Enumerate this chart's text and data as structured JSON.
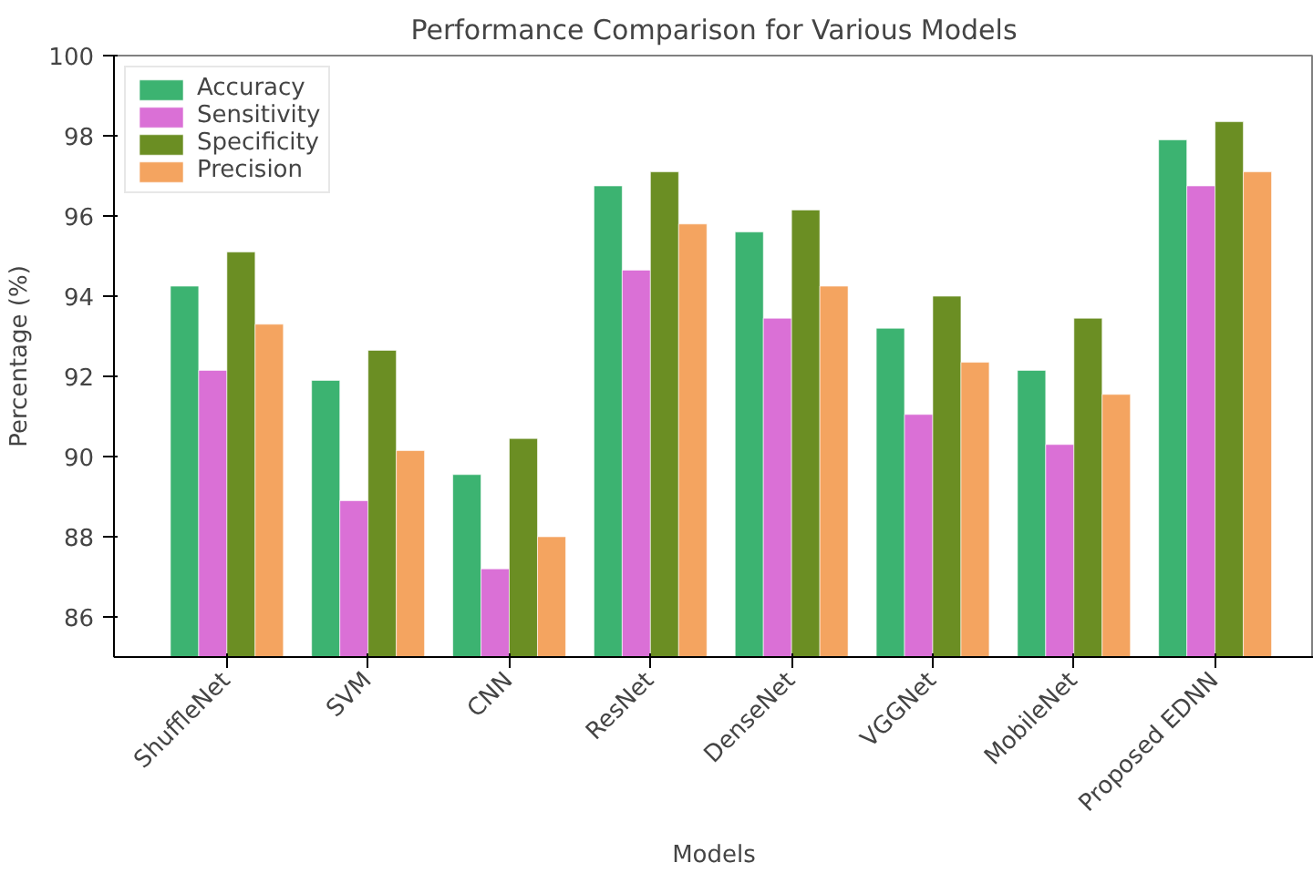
{
  "chart_data": {
    "type": "bar",
    "title": "Performance Comparison for Various Models",
    "xlabel": "Models",
    "ylabel": "Percentage (%)",
    "categories": [
      "ShuffleNet",
      "SVM",
      "CNN",
      "ResNet",
      "DenseNet",
      "VGGNet",
      "MobileNet",
      "Proposed EDNN"
    ],
    "series": [
      {
        "name": "Accuracy",
        "color": "#3cb371",
        "values": [
          94.25,
          91.9,
          89.55,
          96.75,
          95.6,
          93.2,
          92.15,
          97.9
        ]
      },
      {
        "name": "Sensitivity",
        "color": "#da70d6",
        "values": [
          92.15,
          88.9,
          87.2,
          94.65,
          93.45,
          91.05,
          90.3,
          96.75
        ]
      },
      {
        "name": "Specificity",
        "color": "#6b8e23",
        "values": [
          95.1,
          92.65,
          90.45,
          97.1,
          96.15,
          94.0,
          93.45,
          98.35
        ]
      },
      {
        "name": "Precision",
        "color": "#f4a460",
        "values": [
          93.3,
          90.15,
          88.0,
          95.8,
          94.25,
          92.35,
          91.55,
          97.1
        ]
      }
    ],
    "ylim": [
      85,
      100
    ],
    "yticks": [
      86,
      88,
      90,
      92,
      94,
      96,
      98,
      100
    ],
    "grid": false,
    "legend": "top left"
  }
}
